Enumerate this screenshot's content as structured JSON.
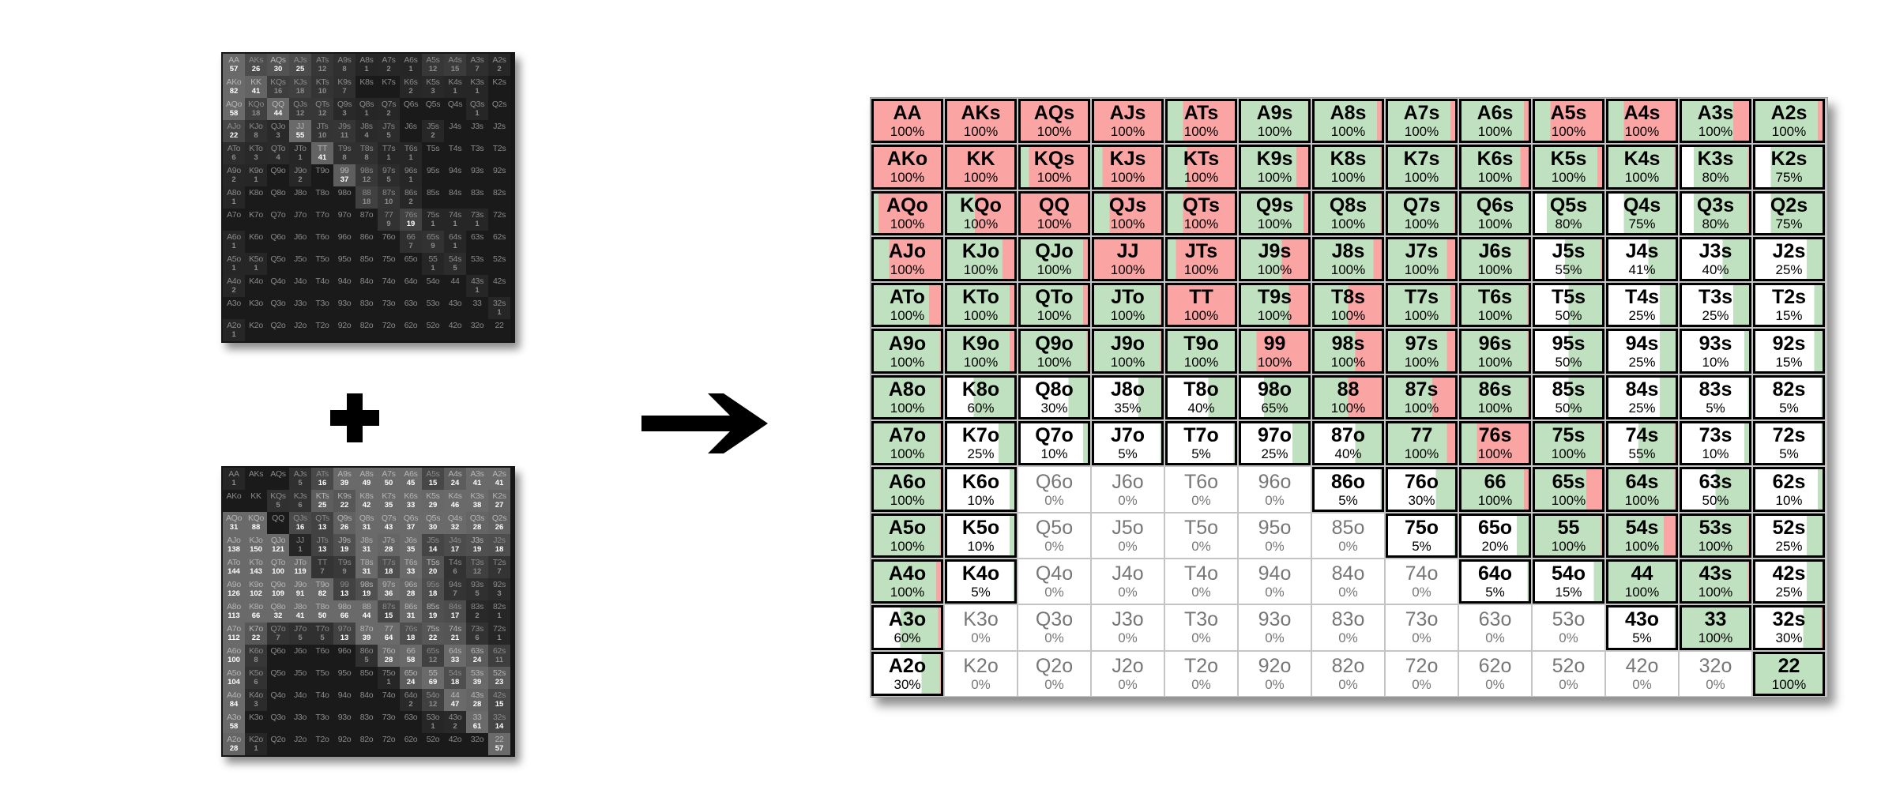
{
  "colors": {
    "call": "#c0e1c0",
    "raise": "#fba4a4",
    "fold": "#ffffff"
  },
  "hands": [
    [
      "AA",
      "AKs",
      "AQs",
      "AJs",
      "ATs",
      "A9s",
      "A8s",
      "A7s",
      "A6s",
      "A5s",
      "A4s",
      "A3s",
      "A2s"
    ],
    [
      "AKo",
      "KK",
      "KQs",
      "KJs",
      "KTs",
      "K9s",
      "K8s",
      "K7s",
      "K6s",
      "K5s",
      "K4s",
      "K3s",
      "K2s"
    ],
    [
      "AQo",
      "KQo",
      "QQ",
      "QJs",
      "QTs",
      "Q9s",
      "Q8s",
      "Q7s",
      "Q6s",
      "Q5s",
      "Q4s",
      "Q3s",
      "Q2s"
    ],
    [
      "AJo",
      "KJo",
      "QJo",
      "JJ",
      "JTs",
      "J9s",
      "J8s",
      "J7s",
      "J6s",
      "J5s",
      "J4s",
      "J3s",
      "J2s"
    ],
    [
      "ATo",
      "KTo",
      "QTo",
      "JTo",
      "TT",
      "T9s",
      "T8s",
      "T7s",
      "T6s",
      "T5s",
      "T4s",
      "T3s",
      "T2s"
    ],
    [
      "A9o",
      "K9o",
      "Q9o",
      "J9o",
      "T9o",
      "99",
      "98s",
      "97s",
      "96s",
      "95s",
      "94s",
      "93s",
      "92s"
    ],
    [
      "A8o",
      "K8o",
      "Q8o",
      "J8o",
      "T8o",
      "98o",
      "88",
      "87s",
      "86s",
      "85s",
      "84s",
      "83s",
      "82s"
    ],
    [
      "A7o",
      "K7o",
      "Q7o",
      "J7o",
      "T7o",
      "97o",
      "87o",
      "77",
      "76s",
      "75s",
      "74s",
      "73s",
      "72s"
    ],
    [
      "A6o",
      "K6o",
      "Q6o",
      "J6o",
      "T6o",
      "96o",
      "86o",
      "76o",
      "66",
      "65s",
      "64s",
      "63s",
      "62s"
    ],
    [
      "A5o",
      "K5o",
      "Q5o",
      "J5o",
      "T5o",
      "95o",
      "85o",
      "75o",
      "65o",
      "55",
      "54s",
      "53s",
      "52s"
    ],
    [
      "A4o",
      "K4o",
      "Q4o",
      "J4o",
      "T4o",
      "94o",
      "84o",
      "74o",
      "64o",
      "54o",
      "44",
      "43s",
      "42s"
    ],
    [
      "A3o",
      "K3o",
      "Q3o",
      "J3o",
      "T3o",
      "93o",
      "83o",
      "73o",
      "63o",
      "53o",
      "43o",
      "33",
      "32s"
    ],
    [
      "A2o",
      "K2o",
      "Q2o",
      "J2o",
      "T2o",
      "92o",
      "82o",
      "72o",
      "62o",
      "52o",
      "42o",
      "32o",
      "22"
    ]
  ],
  "range_pct": [
    [
      "100%",
      "100%",
      "100%",
      "100%",
      "100%",
      "100%",
      "100%",
      "100%",
      "100%",
      "100%",
      "100%",
      "100%",
      "100%"
    ],
    [
      "100%",
      "100%",
      "100%",
      "100%",
      "100%",
      "100%",
      "100%",
      "100%",
      "100%",
      "100%",
      "100%",
      "80%",
      "75%"
    ],
    [
      "100%",
      "100%",
      "100%",
      "100%",
      "100%",
      "100%",
      "100%",
      "100%",
      "100%",
      "80%",
      "75%",
      "80%",
      "75%"
    ],
    [
      "100%",
      "100%",
      "100%",
      "100%",
      "100%",
      "100%",
      "100%",
      "100%",
      "100%",
      "55%",
      "41%",
      "40%",
      "25%"
    ],
    [
      "100%",
      "100%",
      "100%",
      "100%",
      "100%",
      "100%",
      "100%",
      "100%",
      "100%",
      "50%",
      "25%",
      "25%",
      "15%"
    ],
    [
      "100%",
      "100%",
      "100%",
      "100%",
      "100%",
      "100%",
      "100%",
      "100%",
      "100%",
      "50%",
      "25%",
      "10%",
      "15%"
    ],
    [
      "100%",
      "60%",
      "30%",
      "35%",
      "40%",
      "65%",
      "100%",
      "100%",
      "100%",
      "50%",
      "25%",
      "5%",
      "5%"
    ],
    [
      "100%",
      "25%",
      "10%",
      "5%",
      "5%",
      "25%",
      "40%",
      "100%",
      "100%",
      "100%",
      "55%",
      "10%",
      "5%"
    ],
    [
      "100%",
      "10%",
      "0%",
      "0%",
      "0%",
      "0%",
      "5%",
      "30%",
      "100%",
      "100%",
      "100%",
      "50%",
      "10%"
    ],
    [
      "100%",
      "10%",
      "0%",
      "0%",
      "0%",
      "0%",
      "0%",
      "5%",
      "20%",
      "100%",
      "100%",
      "100%",
      "25%"
    ],
    [
      "100%",
      "5%",
      "0%",
      "0%",
      "0%",
      "0%",
      "0%",
      "0%",
      "5%",
      "15%",
      "100%",
      "100%",
      "25%"
    ],
    [
      "60%",
      "0%",
      "0%",
      "0%",
      "0%",
      "0%",
      "0%",
      "0%",
      "0%",
      "0%",
      "5%",
      "100%",
      "30%"
    ],
    [
      "30%",
      "0%",
      "0%",
      "0%",
      "0%",
      "0%",
      "0%",
      "0%",
      "0%",
      "0%",
      "0%",
      "0%",
      "100%"
    ]
  ],
  "range_raise": [
    [
      1,
      1,
      1,
      1,
      0.75,
      0.04,
      0.1,
      0.1,
      0.1,
      0.75,
      0.75,
      0.25,
      0.1
    ],
    [
      1,
      1,
      0.85,
      0.85,
      0.7,
      0.2,
      0.05,
      0.05,
      0.15,
      0.1,
      0.05,
      0.05,
      0
    ],
    [
      0.9,
      0.58,
      1,
      0.75,
      0.75,
      0.1,
      0.05,
      0.05,
      0,
      0,
      0,
      0.05,
      0
    ],
    [
      0.75,
      0.2,
      0.1,
      1,
      0.85,
      0.4,
      0.15,
      0.15,
      0.05,
      0.05,
      0,
      0,
      0
    ],
    [
      0.2,
      0.1,
      0.1,
      0.05,
      1,
      0.3,
      0.5,
      0.1,
      0.05,
      0,
      0,
      0,
      0
    ],
    [
      0.05,
      0.1,
      0.05,
      0.05,
      0,
      0.75,
      0.4,
      0.15,
      0.05,
      0,
      0,
      0,
      0
    ],
    [
      0.05,
      0,
      0,
      0,
      0,
      0,
      0.5,
      0.35,
      0.05,
      0,
      0,
      0,
      0
    ],
    [
      0.05,
      0,
      0,
      0,
      0,
      0,
      0,
      0.15,
      0.75,
      0.05,
      0.05,
      0,
      0
    ],
    [
      0.05,
      0,
      0,
      0,
      0,
      0,
      0,
      0,
      0.1,
      0.25,
      0.05,
      0,
      0
    ],
    [
      0.05,
      0,
      0,
      0,
      0,
      0,
      0,
      0,
      0,
      0.05,
      0.2,
      0.05,
      0
    ],
    [
      0.1,
      0,
      0,
      0,
      0,
      0,
      0,
      0,
      0,
      0,
      0,
      0.05,
      0
    ],
    [
      0.07,
      0,
      0,
      0,
      0,
      0,
      0,
      0,
      0,
      0,
      0,
      0,
      0.05
    ],
    [
      0.05,
      0,
      0,
      0,
      0,
      0,
      0,
      0,
      0,
      0,
      0,
      0,
      0
    ]
  ],
  "heat_top": [
    [
      57,
      26,
      30,
      25,
      12,
      8,
      1,
      2,
      1,
      12,
      15,
      7,
      2
    ],
    [
      82,
      41,
      16,
      18,
      10,
      7,
      null,
      null,
      2,
      3,
      1,
      1,
      null
    ],
    [
      58,
      18,
      44,
      12,
      12,
      3,
      1,
      2,
      null,
      null,
      null,
      1,
      null
    ],
    [
      22,
      8,
      3,
      55,
      10,
      11,
      4,
      5,
      null,
      2,
      null,
      null,
      null
    ],
    [
      6,
      3,
      4,
      1,
      41,
      8,
      8,
      1,
      1,
      null,
      null,
      null,
      null
    ],
    [
      2,
      1,
      null,
      2,
      null,
      37,
      12,
      5,
      1,
      null,
      null,
      null,
      null
    ],
    [
      1,
      null,
      null,
      null,
      null,
      null,
      18,
      10,
      2,
      null,
      null,
      null,
      null
    ],
    [
      null,
      null,
      null,
      null,
      null,
      null,
      null,
      9,
      19,
      1,
      1,
      1,
      null
    ],
    [
      1,
      null,
      null,
      null,
      null,
      null,
      null,
      null,
      7,
      9,
      1,
      null,
      null
    ],
    [
      1,
      1,
      null,
      null,
      null,
      null,
      null,
      null,
      null,
      1,
      5,
      null,
      null
    ],
    [
      2,
      null,
      null,
      null,
      null,
      null,
      null,
      null,
      null,
      null,
      null,
      1,
      null
    ],
    [
      null,
      null,
      null,
      null,
      null,
      null,
      null,
      null,
      null,
      null,
      null,
      null,
      1
    ],
    [
      1,
      null,
      null,
      null,
      null,
      null,
      null,
      null,
      null,
      null,
      null,
      null,
      null
    ]
  ],
  "heat_bottom": [
    [
      1,
      null,
      null,
      5,
      16,
      39,
      49,
      50,
      45,
      15,
      24,
      41,
      41
    ],
    [
      null,
      null,
      5,
      6,
      25,
      22,
      42,
      35,
      33,
      29,
      46,
      38,
      27
    ],
    [
      31,
      88,
      null,
      16,
      13,
      26,
      31,
      43,
      37,
      30,
      32,
      28,
      26
    ],
    [
      138,
      150,
      121,
      1,
      13,
      19,
      31,
      28,
      35,
      14,
      17,
      19,
      18
    ],
    [
      144,
      143,
      100,
      119,
      7,
      9,
      31,
      18,
      33,
      20,
      6,
      12,
      7
    ],
    [
      126,
      102,
      109,
      91,
      82,
      13,
      19,
      36,
      28,
      18,
      7,
      5,
      3
    ],
    [
      113,
      66,
      32,
      41,
      50,
      66,
      44,
      15,
      31,
      19,
      17,
      2,
      1
    ],
    [
      112,
      22,
      7,
      5,
      5,
      13,
      39,
      64,
      18,
      22,
      21,
      6,
      1
    ],
    [
      100,
      8,
      null,
      null,
      null,
      null,
      5,
      28,
      58,
      12,
      33,
      24,
      11
    ],
    [
      104,
      6,
      null,
      null,
      null,
      null,
      null,
      1,
      24,
      69,
      18,
      39,
      23
    ],
    [
      84,
      3,
      null,
      null,
      null,
      null,
      null,
      null,
      2,
      12,
      47,
      28,
      15
    ],
    [
      58,
      null,
      null,
      null,
      null,
      null,
      null,
      null,
      null,
      1,
      2,
      61,
      14
    ],
    [
      28,
      1,
      null,
      null,
      null,
      null,
      null,
      null,
      null,
      null,
      null,
      null,
      57
    ]
  ]
}
